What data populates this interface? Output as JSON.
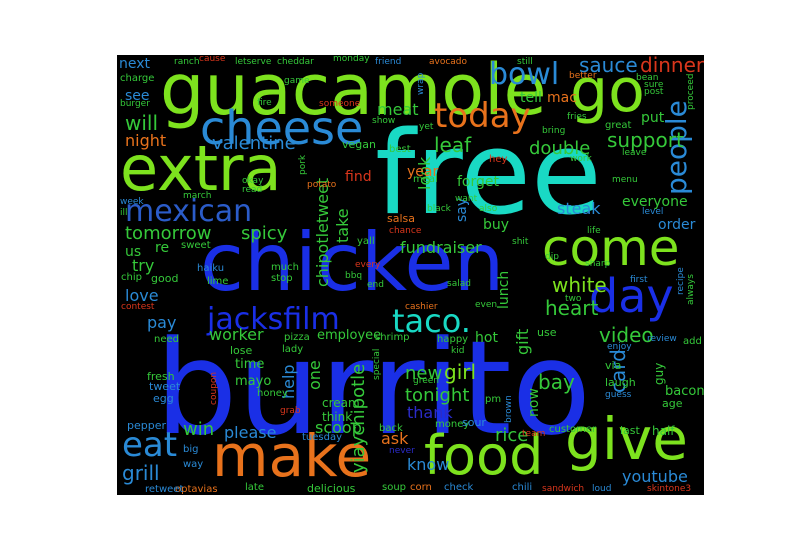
{
  "palette": {
    "blue": "#1a2fe6",
    "cyan": "#19d9c4",
    "lime": "#7de21e",
    "orange": "#e8721c",
    "red": "#d9361c",
    "navy": "#2b2bc9",
    "teal": "#1fae9e",
    "green": "#35c93a"
  },
  "words": {
    "burrito": "burrito",
    "free": "free",
    "chicken": "chicken",
    "guacamole": "guacamole",
    "extra": "extra",
    "make": "make",
    "food": "food",
    "give": "give",
    "go": "go",
    "cheese": "cheese",
    "come": "come",
    "day": "day",
    "mexican": "mexican",
    "jacksfilm": "jacksfilm",
    "taco": "taco.",
    "today": "today",
    "bowl": "bowl",
    "people": "people",
    "eat": "eat",
    "sauce": "sauce",
    "dinner": "dinner",
    "valentine": "valentine",
    "will": "will",
    "tomorrow": "tomorrow",
    "spicy": "spicy",
    "night": "night",
    "meat": "meat",
    "leaf": "leaf",
    "support": "support",
    "double": "double",
    "white": "white",
    "heart": "heart",
    "video": "video",
    "card": "card",
    "bay": "bay",
    "rice": "rice",
    "youtube": "youtube",
    "grill": "grill",
    "win": "win",
    "please": "please",
    "scoop": "scoop",
    "tonight": "tonight",
    "new": "new",
    "girl": "girl",
    "yiaychipotle": "yiaychipotle",
    "ask": "ask",
    "know": "know",
    "thank": "thank",
    "fundraiser": "fundraiser",
    "chipotletweet": "chipotletweet",
    "take": "take",
    "love": "love",
    "try": "try",
    "pay": "pay",
    "worker": "worker",
    "help": "help",
    "one": "one",
    "hot": "hot",
    "gift": "gift",
    "now": "now",
    "lunch": "lunch",
    "buy": "buy",
    "say": "say",
    "steak": "steak",
    "everyone": "everyone",
    "order": "order",
    "look": "look",
    "forget": "forget",
    "year": "year",
    "find": "find",
    "tell": "tell",
    "mac": "mac",
    "see": "see",
    "next": "next",
    "put": "put",
    "guy": "guy",
    "us": "us",
    "re": "re",
    "employee": "employee",
    "cream": "cream",
    "think": "think",
    "time": "time",
    "mayo": "mayo",
    "tweet": "tweet",
    "fresh": "fresh",
    "bacon": "bacon",
    "age": "age",
    "delicious": "delicious",
    "optavias": "optavias",
    "retweet": "retweet",
    "sandwich": "sandwich",
    "chili": "chili",
    "check": "check",
    "corn": "corn",
    "soup": "soup",
    "late": "late",
    "loud": "loud",
    "skintone3": "skintone3",
    "half": "half",
    "last": "last",
    "customer": "customer",
    "team": "team",
    "brown": "brown",
    "money": "money",
    "sour": "sour",
    "back": "back",
    "never": "never",
    "tuesday": "tuesday",
    "pepper": "pepper",
    "big": "big",
    "way": "way",
    "coupon": "coupon",
    "egg": "egg",
    "grab": "grab",
    "honey": "honey",
    "lose": "lose",
    "pizza": "pizza",
    "lady": "lady",
    "shrimp": "shrimp",
    "special": "special",
    "happy": "happy",
    "kid": "kid",
    "pm": "pm",
    "green": "green",
    "guess": "guess",
    "via": "via",
    "laugh": "laugh",
    "enjoy": "enjoy",
    "review": "review",
    "add": "add",
    "use": "use",
    "two": "two",
    "sharp": "sharp",
    "always": "always",
    "recipe": "recipe",
    "cashier": "cashier",
    "even": "even",
    "salad": "salad",
    "end": "end",
    "every": "every",
    "bbq": "bbq",
    "much": "much",
    "stop": "stop",
    "lime": "lime",
    "haiku": "haiku",
    "good": "good",
    "chip": "chip",
    "sweet": "sweet",
    "contest": "contest",
    "need": "need",
    "ill": "ill",
    "week": "week",
    "march": "march",
    "okay": "okay",
    "read": "read",
    "potato": "potato",
    "pork": "pork",
    "vegan": "vegan",
    "best": "best",
    "yall": "yall",
    "salsa": "salsa",
    "chance": "chance",
    "black": "black",
    "shit": "shit",
    "dip": "dip",
    "also": "also",
    "want": "want",
    "meal": "meal",
    "hey": "hey",
    "life": "life",
    "fries": "fries",
    "menu": "menu",
    "level": "level",
    "leave": "leave",
    "great": "great",
    "work": "work",
    "bring": "bring",
    "yet": "yet",
    "show": "show",
    "someone": "someone",
    "game": "game",
    "fire": "fire",
    "burger": "burger",
    "charge": "charge",
    "ranch": "ranch",
    "cause": "cause",
    "letserve": "letserve",
    "cheddar": "cheddar",
    "monday": "monday",
    "friend": "friend",
    "avocado": "avocado",
    "wrap": "wrap",
    "still": "still",
    "better": "better",
    "bean": "bean",
    "sure": "sure",
    "post": "post",
    "proceed": "proceed",
    "first": "first"
  }
}
